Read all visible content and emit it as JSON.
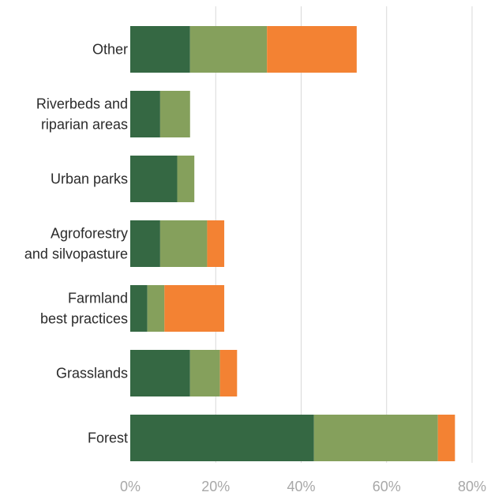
{
  "chart_data": {
    "type": "bar",
    "orientation": "horizontal",
    "stacked": true,
    "categories": [
      "Other",
      "Riverbeds and riparian areas",
      "Urban parks",
      "Agroforestry and silvopasture",
      "Farmland best practices",
      "Grasslands",
      "Forest"
    ],
    "category_lines": [
      [
        "Other"
      ],
      [
        "Riverbeds and",
        "riparian areas"
      ],
      [
        "Urban parks"
      ],
      [
        "Agroforestry",
        "and silvopasture"
      ],
      [
        "Farmland",
        "best practices"
      ],
      [
        "Grasslands"
      ],
      [
        "Forest"
      ]
    ],
    "series": [
      {
        "values": [
          14,
          7,
          11,
          7,
          4,
          14,
          43
        ],
        "color": "#356843"
      },
      {
        "values": [
          18,
          7,
          4,
          11,
          4,
          7,
          29
        ],
        "color": "#85a05c"
      },
      {
        "values": [
          21,
          0,
          0,
          4,
          14,
          4,
          4
        ],
        "color": "#f38233"
      }
    ],
    "x_ticks": [
      "0%",
      "20%",
      "40%",
      "60%",
      "80%"
    ],
    "x_tick_values": [
      0,
      20,
      40,
      60,
      80
    ],
    "xlim": [
      0,
      80
    ],
    "grid": true,
    "legend": "none"
  }
}
